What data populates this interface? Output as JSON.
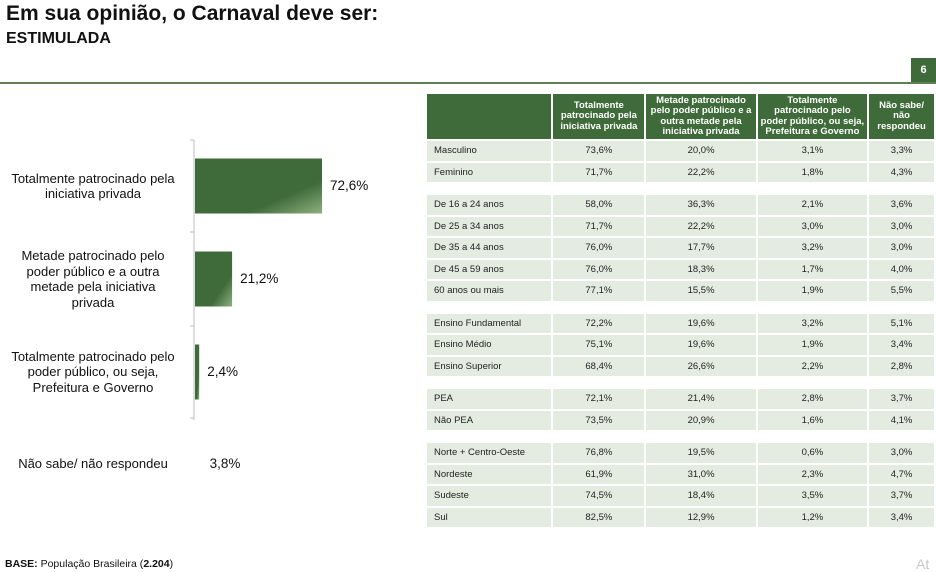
{
  "title": "Em sua opinião, o Carnaval deve ser:",
  "subtitle": "ESTIMULADA",
  "page_number": "6",
  "footer": {
    "label": "BASE:",
    "text": " População Brasileira (",
    "n": "2.204",
    "close": ")"
  },
  "watermark": "At",
  "colors": {
    "bar_dark": "#3f6b3a",
    "bar_light": "#8fb07f",
    "header_bg": "#3f6b3a",
    "cell_bg": "#e4ece1"
  },
  "chart_data": {
    "type": "bar",
    "orientation": "horizontal",
    "categories": [
      [
        "Totalmente patrocinado pela",
        "iniciativa privada"
      ],
      [
        "Metade patrocinado pelo",
        "poder público e a outra",
        "metade pela iniciativa",
        "privada"
      ],
      [
        "Totalmente patrocinado pelo",
        "poder público, ou seja,",
        "Prefeitura e Governo"
      ],
      [
        "Não sabe/ não respondeu"
      ]
    ],
    "values": [
      72.6,
      21.2,
      2.4,
      3.8
    ],
    "value_labels": [
      "72,6%",
      "21,2%",
      "2,4%",
      "3,8%"
    ],
    "xlim": [
      0,
      100
    ],
    "title": "",
    "xlabel": "",
    "ylabel": "",
    "grid": false,
    "legend": "none"
  },
  "table": {
    "headers": [
      "",
      "Totalmente patrocinado pela iniciativa privada",
      "Metade patrocinado pelo poder público e a outra metade pela iniciativa privada",
      "Totalmente patrocinado pelo poder público, ou seja, Prefeitura e Governo",
      "Não sabe/ não respondeu"
    ],
    "groups": [
      [
        [
          "Masculino",
          "73,6%",
          "20,0%",
          "3,1%",
          "3,3%"
        ],
        [
          "Feminino",
          "71,7%",
          "22,2%",
          "1,8%",
          "4,3%"
        ]
      ],
      [
        [
          "De 16 a 24 anos",
          "58,0%",
          "36,3%",
          "2,1%",
          "3,6%"
        ],
        [
          "De 25 a 34 anos",
          "71,7%",
          "22,2%",
          "3,0%",
          "3,0%"
        ],
        [
          "De 35 a 44 anos",
          "76,0%",
          "17,7%",
          "3,2%",
          "3,0%"
        ],
        [
          "De 45 a 59 anos",
          "76,0%",
          "18,3%",
          "1,7%",
          "4,0%"
        ],
        [
          "60 anos ou mais",
          "77,1%",
          "15,5%",
          "1,9%",
          "5,5%"
        ]
      ],
      [
        [
          "Ensino Fundamental",
          "72,2%",
          "19,6%",
          "3,2%",
          "5,1%"
        ],
        [
          "Ensino Médio",
          "75,1%",
          "19,6%",
          "1,9%",
          "3,4%"
        ],
        [
          "Ensino Superior",
          "68,4%",
          "26,6%",
          "2,2%",
          "2,8%"
        ]
      ],
      [
        [
          "PEA",
          "72,1%",
          "21,4%",
          "2,8%",
          "3,7%"
        ],
        [
          "Não PEA",
          "73,5%",
          "20,9%",
          "1,6%",
          "4,1%"
        ]
      ],
      [
        [
          "Norte + Centro-Oeste",
          "76,8%",
          "19,5%",
          "0,6%",
          "3,0%"
        ],
        [
          "Nordeste",
          "61,9%",
          "31,0%",
          "2,3%",
          "4,7%"
        ],
        [
          "Sudeste",
          "74,5%",
          "18,4%",
          "3,5%",
          "3,7%"
        ],
        [
          "Sul",
          "82,5%",
          "12,9%",
          "1,2%",
          "3,4%"
        ]
      ]
    ]
  }
}
